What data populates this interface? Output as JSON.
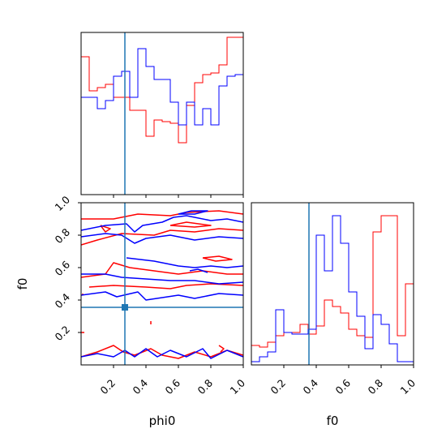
{
  "chart_data": {
    "type": "corner",
    "params": [
      "phi0",
      "f0"
    ],
    "colors": {
      "red": "#ff0000",
      "blue": "#0000ff",
      "truth": "#1f77b4"
    },
    "truth": {
      "phi0": 0.27,
      "f0": 0.355
    },
    "panels": [
      {
        "id": "hist_phi0",
        "type": "step-histogram",
        "x_range": [
          0.0,
          1.0
        ],
        "bin_edges": [
          0.0,
          0.05,
          0.1,
          0.15,
          0.2,
          0.25,
          0.3,
          0.35,
          0.4,
          0.45,
          0.5,
          0.55,
          0.6,
          0.65,
          0.7,
          0.75,
          0.8,
          0.85,
          0.9,
          0.95,
          1.0
        ],
        "y_range": [
          0,
          1.0
        ],
        "series": [
          {
            "name": "",
            "color": "red",
            "values": [
              0.85,
              0.64,
              0.66,
              0.68,
              0.6,
              0.6,
              0.52,
              0.52,
              0.36,
              0.46,
              0.45,
              0.44,
              0.32,
              0.55,
              0.69,
              0.74,
              0.75,
              0.8,
              0.97,
              0.97
            ]
          },
          {
            "name": "",
            "color": "blue",
            "values": [
              0.6,
              0.6,
              0.53,
              0.58,
              0.73,
              0.76,
              0.6,
              0.9,
              0.79,
              0.71,
              0.71,
              0.57,
              0.43,
              0.57,
              0.43,
              0.53,
              0.43,
              0.67,
              0.73,
              0.74
            ]
          }
        ]
      },
      {
        "id": "contour_phi0_f0",
        "type": "contour",
        "xlabel": "phi0",
        "ylabel": "f0",
        "x_range": [
          0.0,
          1.0
        ],
        "y_range": [
          0.0,
          1.0
        ],
        "x_ticks": [
          "0.2",
          "0.4",
          "0.6",
          "0.8",
          "1.0"
        ],
        "y_ticks": [
          "0.2",
          "0.4",
          "0.6",
          "0.8",
          "1.0"
        ],
        "series": [
          {
            "name": "",
            "color": "red",
            "contours": [
              [
                [
                  0.0,
                  0.9
                ],
                [
                  0.2,
                  0.9
                ],
                [
                  0.35,
                  0.93
                ],
                [
                  0.55,
                  0.92
                ],
                [
                  0.65,
                  0.94
                ],
                [
                  0.85,
                  0.95
                ],
                [
                  1.0,
                  0.93
                ]
              ],
              [
                [
                  0.0,
                  0.74
                ],
                [
                  0.1,
                  0.77
                ],
                [
                  0.25,
                  0.81
                ],
                [
                  0.45,
                  0.8
                ],
                [
                  0.55,
                  0.83
                ],
                [
                  0.7,
                  0.82
                ],
                [
                  0.85,
                  0.84
                ],
                [
                  1.0,
                  0.83
                ]
              ],
              [
                [
                  0.12,
                  0.86
                ],
                [
                  0.18,
                  0.84
                ],
                [
                  0.15,
                  0.82
                ],
                [
                  0.12,
                  0.86
                ]
              ],
              [
                [
                  0.55,
                  0.86
                ],
                [
                  0.65,
                  0.88
                ],
                [
                  0.8,
                  0.86
                ],
                [
                  0.7,
                  0.85
                ],
                [
                  0.55,
                  0.86
                ]
              ],
              [
                [
                  0.0,
                  0.54
                ],
                [
                  0.15,
                  0.56
                ],
                [
                  0.2,
                  0.63
                ],
                [
                  0.3,
                  0.6
                ],
                [
                  0.45,
                  0.58
                ],
                [
                  0.6,
                  0.56
                ],
                [
                  0.75,
                  0.58
                ],
                [
                  0.9,
                  0.56
                ],
                [
                  1.0,
                  0.56
                ]
              ],
              [
                [
                  0.05,
                  0.48
                ],
                [
                  0.2,
                  0.49
                ],
                [
                  0.4,
                  0.48
                ],
                [
                  0.55,
                  0.47
                ],
                [
                  0.65,
                  0.49
                ],
                [
                  0.8,
                  0.5
                ],
                [
                  1.0,
                  0.49
                ]
              ],
              [
                [
                  0.75,
                  0.66
                ],
                [
                  0.85,
                  0.67
                ],
                [
                  0.93,
                  0.65
                ],
                [
                  0.83,
                  0.64
                ],
                [
                  0.75,
                  0.66
                ]
              ],
              [
                [
                  0.01,
                  0.44
                ],
                [
                  0.01,
                  0.43
                ]
              ],
              [
                [
                  0.0,
                  0.2
                ],
                [
                  0.02,
                  0.2
                ]
              ],
              [
                [
                  0.43,
                  0.27
                ],
                [
                  0.43,
                  0.25
                ]
              ],
              [
                [
                  0.0,
                  0.05
                ],
                [
                  0.1,
                  0.08
                ],
                [
                  0.2,
                  0.12
                ],
                [
                  0.26,
                  0.08
                ],
                [
                  0.33,
                  0.06
                ],
                [
                  0.43,
                  0.1
                ],
                [
                  0.5,
                  0.06
                ],
                [
                  0.6,
                  0.04
                ],
                [
                  0.7,
                  0.08
                ],
                [
                  0.8,
                  0.05
                ],
                [
                  0.9,
                  0.09
                ],
                [
                  1.0,
                  0.06
                ]
              ],
              [
                [
                  0.85,
                  0.12
                ],
                [
                  0.88,
                  0.1
                ],
                [
                  0.86,
                  0.08
                ]
              ]
            ]
          },
          {
            "name": "",
            "color": "blue",
            "contours": [
              [
                [
                  0.0,
                  0.83
                ],
                [
                  0.15,
                  0.86
                ],
                [
                  0.28,
                  0.87
                ],
                [
                  0.33,
                  0.82
                ],
                [
                  0.38,
                  0.86
                ],
                [
                  0.5,
                  0.88
                ],
                [
                  0.57,
                  0.91
                ],
                [
                  0.65,
                  0.92
                ],
                [
                  0.8,
                  0.89
                ],
                [
                  0.9,
                  0.9
                ],
                [
                  1.0,
                  0.88
                ]
              ],
              [
                [
                  0.0,
                  0.79
                ],
                [
                  0.15,
                  0.81
                ],
                [
                  0.25,
                  0.8
                ],
                [
                  0.33,
                  0.75
                ],
                [
                  0.4,
                  0.78
                ],
                [
                  0.55,
                  0.8
                ],
                [
                  0.7,
                  0.77
                ],
                [
                  0.85,
                  0.79
                ],
                [
                  1.0,
                  0.78
                ]
              ],
              [
                [
                  0.6,
                  0.93
                ],
                [
                  0.68,
                  0.95
                ],
                [
                  0.78,
                  0.95
                ],
                [
                  0.7,
                  0.93
                ],
                [
                  0.6,
                  0.93
                ]
              ],
              [
                [
                  0.28,
                  0.66
                ],
                [
                  0.45,
                  0.64
                ],
                [
                  0.6,
                  0.61
                ],
                [
                  0.7,
                  0.6
                ],
                [
                  0.8,
                  0.61
                ],
                [
                  0.9,
                  0.6
                ],
                [
                  1.0,
                  0.61
                ]
              ],
              [
                [
                  0.0,
                  0.56
                ],
                [
                  0.15,
                  0.56
                ],
                [
                  0.25,
                  0.54
                ],
                [
                  0.4,
                  0.53
                ],
                [
                  0.55,
                  0.52
                ],
                [
                  0.7,
                  0.52
                ],
                [
                  0.85,
                  0.5
                ],
                [
                  1.0,
                  0.51
                ]
              ],
              [
                [
                  0.0,
                  0.43
                ],
                [
                  0.15,
                  0.45
                ],
                [
                  0.22,
                  0.42
                ],
                [
                  0.35,
                  0.45
                ],
                [
                  0.4,
                  0.4
                ],
                [
                  0.6,
                  0.43
                ],
                [
                  0.7,
                  0.41
                ],
                [
                  0.85,
                  0.44
                ],
                [
                  1.0,
                  0.43
                ]
              ],
              [
                [
                  0.67,
                  0.58
                ],
                [
                  0.72,
                  0.59
                ],
                [
                  0.78,
                  0.57
                ]
              ],
              [
                [
                  0.0,
                  0.05
                ],
                [
                  0.1,
                  0.07
                ],
                [
                  0.2,
                  0.05
                ],
                [
                  0.27,
                  0.09
                ],
                [
                  0.33,
                  0.05
                ],
                [
                  0.4,
                  0.1
                ],
                [
                  0.47,
                  0.05
                ],
                [
                  0.55,
                  0.09
                ],
                [
                  0.65,
                  0.05
                ],
                [
                  0.75,
                  0.1
                ],
                [
                  0.8,
                  0.04
                ],
                [
                  0.9,
                  0.09
                ],
                [
                  1.0,
                  0.05
                ]
              ]
            ]
          }
        ]
      },
      {
        "id": "hist_f0",
        "type": "step-histogram",
        "xlabel": "f0",
        "x_range": [
          0.0,
          1.0
        ],
        "x_ticks": [
          "0.2",
          "0.4",
          "0.6",
          "0.8",
          "1.0"
        ],
        "bin_edges": [
          0.0,
          0.05,
          0.1,
          0.15,
          0.2,
          0.25,
          0.3,
          0.35,
          0.4,
          0.45,
          0.5,
          0.55,
          0.6,
          0.65,
          0.7,
          0.75,
          0.8,
          0.85,
          0.9,
          0.95,
          1.0
        ],
        "y_range": [
          0,
          1.0
        ],
        "series": [
          {
            "name": "",
            "color": "red",
            "values": [
              0.12,
              0.11,
              0.14,
              0.18,
              0.2,
              0.2,
              0.25,
              0.19,
              0.24,
              0.4,
              0.36,
              0.32,
              0.22,
              0.18,
              0.17,
              0.82,
              0.92,
              0.92,
              0.18,
              0.5
            ]
          },
          {
            "name": "",
            "color": "blue",
            "values": [
              0.02,
              0.05,
              0.08,
              0.34,
              0.2,
              0.19,
              0.19,
              0.22,
              0.8,
              0.58,
              0.92,
              0.75,
              0.45,
              0.3,
              0.1,
              0.31,
              0.25,
              0.13,
              0.02,
              0.02
            ]
          }
        ]
      }
    ]
  }
}
